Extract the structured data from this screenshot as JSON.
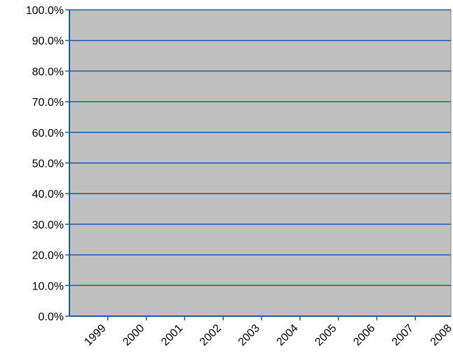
{
  "chart_data": {
    "type": "line",
    "categories": [
      "1999",
      "2000",
      "2001",
      "2002",
      "2003",
      "2004",
      "2005",
      "2006",
      "2007",
      "2008"
    ],
    "series": [],
    "yticks": [
      "0.0%",
      "10.0%",
      "20.0%",
      "30.0%",
      "40.0%",
      "50.0%",
      "60.0%",
      "70.0%",
      "80.0%",
      "90.0%",
      "100.0%"
    ],
    "ylim": [
      0,
      100
    ],
    "grid": true,
    "legend": "none",
    "colors": {
      "plot_background": "#c0c0c0",
      "gridline": "#1f5aa0",
      "axis": "#1f5aa0",
      "border": "#808080"
    }
  }
}
